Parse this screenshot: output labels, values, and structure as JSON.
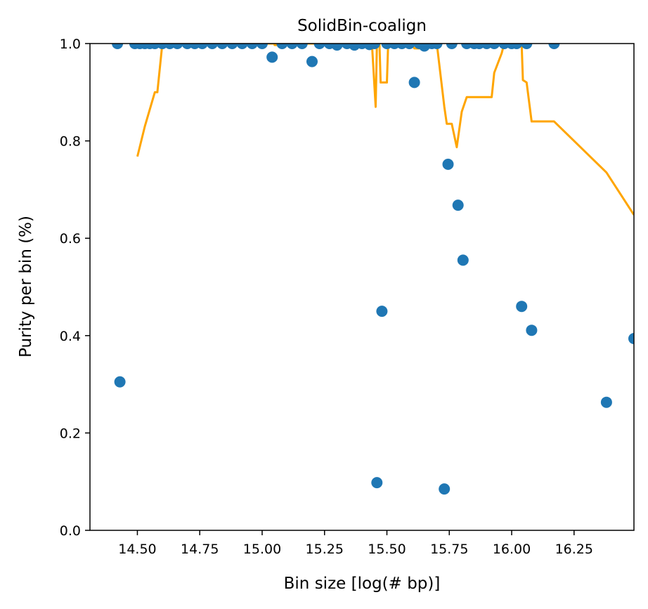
{
  "chart_data": {
    "type": "scatter",
    "title": "SolidBin-coalign",
    "xlabel": "Bin size [log(# bp)]",
    "ylabel": "Purity per bin (%)",
    "xlim": [
      14.31,
      16.49
    ],
    "ylim": [
      0.0,
      1.0
    ],
    "xticks": [
      14.5,
      14.75,
      15.0,
      15.25,
      15.5,
      15.75,
      16.0,
      16.25
    ],
    "xtick_labels": [
      "14.50",
      "14.75",
      "15.00",
      "15.25",
      "15.50",
      "15.75",
      "16.00",
      "16.25"
    ],
    "yticks": [
      0.0,
      0.2,
      0.4,
      0.6,
      0.8,
      1.0
    ],
    "ytick_labels": [
      "0.0",
      "0.2",
      "0.4",
      "0.6",
      "0.8",
      "1.0"
    ],
    "grid": false,
    "legend": "none",
    "series": [
      {
        "kind": "scatter",
        "color": "#1f77b4",
        "points": [
          [
            14.42,
            1.0
          ],
          [
            14.43,
            0.305
          ],
          [
            14.49,
            1.0
          ],
          [
            14.51,
            1.0
          ],
          [
            14.53,
            1.0
          ],
          [
            14.55,
            1.0
          ],
          [
            14.57,
            1.0
          ],
          [
            14.6,
            1.0
          ],
          [
            14.63,
            1.0
          ],
          [
            14.66,
            1.0
          ],
          [
            14.7,
            1.0
          ],
          [
            14.73,
            1.0
          ],
          [
            14.76,
            1.0
          ],
          [
            14.8,
            1.0
          ],
          [
            14.84,
            1.0
          ],
          [
            14.88,
            1.0
          ],
          [
            14.92,
            1.0
          ],
          [
            14.96,
            1.0
          ],
          [
            15.0,
            1.0
          ],
          [
            15.04,
            0.972
          ],
          [
            15.08,
            1.0
          ],
          [
            15.12,
            1.0
          ],
          [
            15.16,
            1.0
          ],
          [
            15.2,
            0.963
          ],
          [
            15.23,
            1.0
          ],
          [
            15.27,
            1.0
          ],
          [
            15.3,
            0.997
          ],
          [
            15.34,
            1.0
          ],
          [
            15.37,
            0.997
          ],
          [
            15.4,
            1.0
          ],
          [
            15.43,
            0.998
          ],
          [
            15.45,
            1.0
          ],
          [
            15.46,
            0.098
          ],
          [
            15.48,
            0.45
          ],
          [
            15.5,
            1.0
          ],
          [
            15.53,
            1.0
          ],
          [
            15.56,
            1.0
          ],
          [
            15.59,
            1.0
          ],
          [
            15.61,
            0.92
          ],
          [
            15.63,
            1.0
          ],
          [
            15.65,
            0.995
          ],
          [
            15.68,
            1.0
          ],
          [
            15.7,
            1.0
          ],
          [
            15.73,
            0.085
          ],
          [
            15.745,
            0.752
          ],
          [
            15.76,
            1.0
          ],
          [
            15.785,
            0.668
          ],
          [
            15.805,
            0.555
          ],
          [
            15.82,
            1.0
          ],
          [
            15.85,
            1.0
          ],
          [
            15.87,
            1.0
          ],
          [
            15.9,
            1.0
          ],
          [
            15.93,
            1.0
          ],
          [
            15.97,
            1.0
          ],
          [
            16.0,
            1.0
          ],
          [
            16.02,
            1.0
          ],
          [
            16.04,
            0.46
          ],
          [
            16.06,
            1.0
          ],
          [
            16.08,
            0.411
          ],
          [
            16.17,
            1.0
          ],
          [
            16.38,
            0.263
          ],
          [
            16.49,
            0.394
          ]
        ]
      },
      {
        "kind": "line",
        "color": "#ffa500",
        "points": [
          [
            14.5,
            0.768
          ],
          [
            14.53,
            0.83
          ],
          [
            14.57,
            0.9
          ],
          [
            14.58,
            0.9
          ],
          [
            14.6,
            1.0
          ],
          [
            15.05,
            1.0
          ],
          [
            15.05,
            0.997
          ],
          [
            15.07,
            0.997
          ],
          [
            15.08,
            1.0
          ],
          [
            15.44,
            1.0
          ],
          [
            15.455,
            0.87
          ],
          [
            15.46,
            1.0
          ],
          [
            15.47,
            1.0
          ],
          [
            15.475,
            0.92
          ],
          [
            15.5,
            0.92
          ],
          [
            15.505,
            1.0
          ],
          [
            15.6,
            1.0
          ],
          [
            15.61,
            0.99
          ],
          [
            15.63,
            0.99
          ],
          [
            15.64,
            1.0
          ],
          [
            15.7,
            1.0
          ],
          [
            15.73,
            0.87
          ],
          [
            15.74,
            0.835
          ],
          [
            15.76,
            0.835
          ],
          [
            15.78,
            0.787
          ],
          [
            15.8,
            0.86
          ],
          [
            15.82,
            0.89
          ],
          [
            15.92,
            0.89
          ],
          [
            15.93,
            0.94
          ],
          [
            15.96,
            0.98
          ],
          [
            15.97,
            1.0
          ],
          [
            16.04,
            1.0
          ],
          [
            16.045,
            0.925
          ],
          [
            16.06,
            0.92
          ],
          [
            16.08,
            0.84
          ],
          [
            16.17,
            0.84
          ],
          [
            16.38,
            0.735
          ],
          [
            16.49,
            0.648
          ]
        ]
      }
    ]
  }
}
